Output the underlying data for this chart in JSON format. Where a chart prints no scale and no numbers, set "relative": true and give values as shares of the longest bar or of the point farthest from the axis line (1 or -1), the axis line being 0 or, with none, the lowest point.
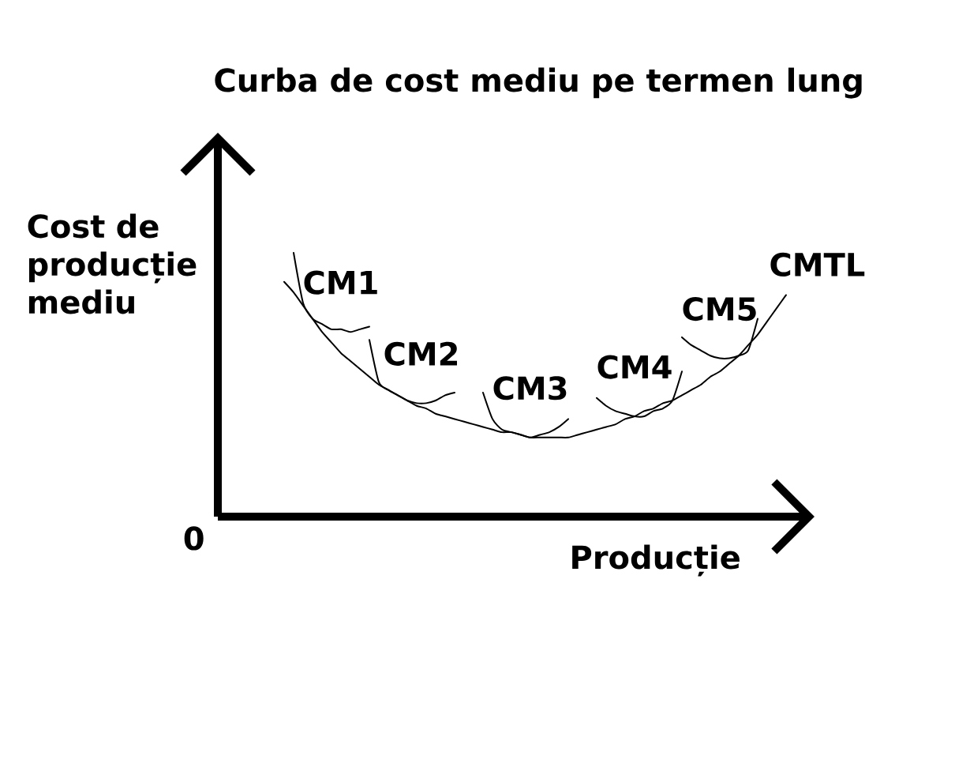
{
  "chart_data": {
    "type": "line",
    "title": "Curba de cost mediu pe termen lung",
    "xlabel": "Producție",
    "ylabel": "Cost de producție mediu",
    "annotations": [
      "0"
    ],
    "relative": true,
    "categories": [
      null,
      null,
      null,
      null,
      null,
      null,
      null,
      null,
      null,
      null,
      null,
      null,
      null,
      null,
      null,
      null,
      null,
      null,
      null,
      null,
      null,
      null,
      null,
      null,
      null,
      null,
      null,
      null,
      null,
      null,
      null,
      null,
      null,
      null,
      null,
      null,
      null,
      null,
      null,
      null,
      null,
      null,
      null,
      null,
      null,
      null,
      null,
      null,
      null,
      null,
      null,
      null,
      null,
      null,
      null,
      null,
      null,
      null,
      null,
      null,
      null,
      null,
      null,
      null
    ],
    "series": [
      {
        "name": "CMTL",
        "color": "#000000",
        "values": [
          null,
          null,
          null,
          null,
          null,
          null,
          null,
          0.89,
          0.85,
          0.8,
          0.75,
          0.7,
          0.66,
          0.62,
          0.59,
          0.56,
          0.53,
          0.5,
          0.48,
          0.46,
          0.44,
          0.42,
          0.41,
          0.39,
          0.38,
          0.37,
          0.36,
          0.35,
          0.34,
          0.33,
          0.32,
          0.32,
          0.31,
          0.3,
          0.3,
          0.3,
          0.3,
          0.3,
          0.31,
          0.32,
          0.33,
          0.34,
          0.35,
          0.37,
          0.38,
          0.4,
          0.41,
          0.43,
          0.44,
          0.46,
          0.48,
          0.5,
          0.53,
          0.55,
          0.58,
          0.61,
          0.65,
          0.69,
          0.74,
          0.79,
          0.84,
          null,
          null,
          null
        ]
      },
      {
        "name": "CM1",
        "color": "#000000",
        "values": [
          null,
          null,
          null,
          null,
          null,
          null,
          null,
          null,
          1,
          0.81,
          0.75,
          0.73,
          0.71,
          0.71,
          0.7,
          0.71,
          0.72,
          null,
          null,
          null,
          null,
          null,
          null,
          null,
          null,
          null,
          null,
          null,
          null,
          null,
          null,
          null,
          null,
          null,
          null,
          null,
          null,
          null,
          null,
          null,
          null,
          null,
          null,
          null,
          null,
          null,
          null,
          null,
          null,
          null,
          null,
          null,
          null,
          null,
          null,
          null,
          null,
          null,
          null,
          null,
          null,
          null,
          null,
          null
        ]
      },
      {
        "name": "CM2",
        "color": "#000000",
        "values": [
          null,
          null,
          null,
          null,
          null,
          null,
          null,
          null,
          null,
          null,
          null,
          null,
          null,
          null,
          null,
          null,
          0.67,
          0.51,
          0.48,
          0.46,
          0.44,
          0.43,
          0.43,
          0.44,
          0.46,
          0.47,
          null,
          null,
          null,
          null,
          null,
          null,
          null,
          null,
          null,
          null,
          null,
          null,
          null,
          null,
          null,
          null,
          null,
          null,
          null,
          null,
          null,
          null,
          null,
          null,
          null,
          null,
          null,
          null,
          null,
          null,
          null,
          null,
          null,
          null,
          null,
          null,
          null,
          null
        ]
      },
      {
        "name": "CM3",
        "color": "#000000",
        "values": [
          null,
          null,
          null,
          null,
          null,
          null,
          null,
          null,
          null,
          null,
          null,
          null,
          null,
          null,
          null,
          null,
          null,
          null,
          null,
          null,
          null,
          null,
          null,
          null,
          null,
          null,
          null,
          null,
          0.47,
          0.37,
          0.33,
          0.32,
          0.31,
          0.3,
          0.31,
          0.32,
          0.34,
          0.37,
          null,
          null,
          null,
          null,
          null,
          null,
          null,
          null,
          null,
          null,
          null,
          null,
          null,
          null,
          null,
          null,
          null,
          null,
          null,
          null,
          null,
          null,
          null,
          null,
          null,
          null
        ]
      },
      {
        "name": "CM4",
        "color": "#000000",
        "values": [
          null,
          null,
          null,
          null,
          null,
          null,
          null,
          null,
          null,
          null,
          null,
          null,
          null,
          null,
          null,
          null,
          null,
          null,
          null,
          null,
          null,
          null,
          null,
          null,
          null,
          null,
          null,
          null,
          null,
          null,
          null,
          null,
          null,
          null,
          null,
          null,
          null,
          null,
          null,
          null,
          0.45,
          0.42,
          0.4,
          0.39,
          0.38,
          0.38,
          0.4,
          0.41,
          0.44,
          0.55,
          null,
          null,
          null,
          null,
          null,
          null,
          null,
          null,
          null,
          null,
          null,
          null,
          null,
          null
        ]
      },
      {
        "name": "CM5",
        "color": "#000000",
        "values": [
          null,
          null,
          null,
          null,
          null,
          null,
          null,
          null,
          null,
          null,
          null,
          null,
          null,
          null,
          null,
          null,
          null,
          null,
          null,
          null,
          null,
          null,
          null,
          null,
          null,
          null,
          null,
          null,
          null,
          null,
          null,
          null,
          null,
          null,
          null,
          null,
          null,
          null,
          null,
          null,
          null,
          null,
          null,
          null,
          null,
          null,
          null,
          null,
          null,
          0.68,
          0.65,
          0.63,
          0.61,
          0.6,
          0.6,
          0.61,
          0.63,
          0.75,
          null,
          null,
          null,
          null,
          null,
          null
        ]
      }
    ]
  }
}
